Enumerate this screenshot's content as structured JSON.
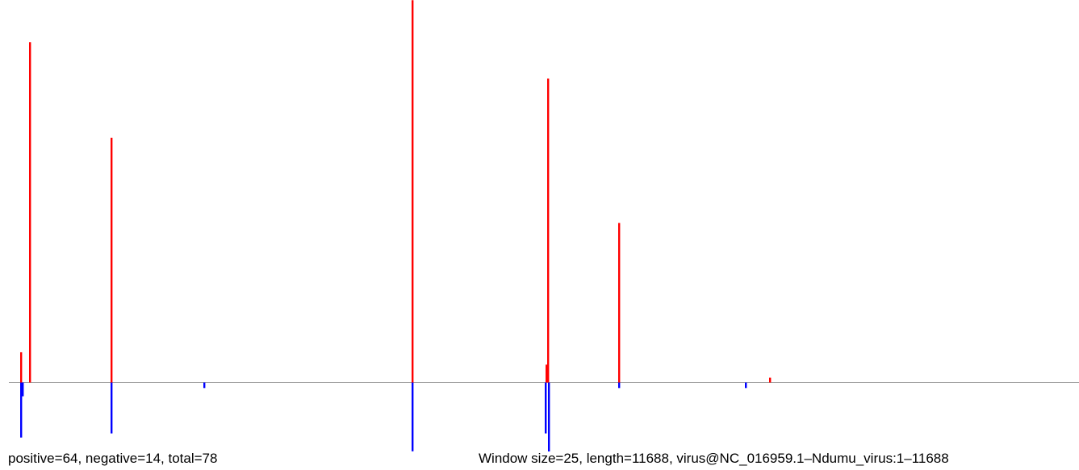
{
  "footer": {
    "counts": "positive=64, negative=14, total=78",
    "info": "Window size=25, length=11688, virus@NC_016959.1–Ndumu_virus:1–11688"
  },
  "colors": {
    "positive": "#ff0000",
    "negative": "#0000ff",
    "baseline": "#a0a0a0"
  },
  "chart_data": {
    "type": "bar",
    "title": "",
    "xlabel": "",
    "ylabel": "",
    "xlim": [
      1,
      11688
    ],
    "ylim": [
      -10,
      56
    ],
    "grid": false,
    "legend": "none",
    "series": [
      {
        "sign": "positive",
        "x": [
          130,
          230,
          1120,
          4410,
          5870,
          5890,
          6660,
          8310
        ],
        "values": [
          4.4,
          49.5,
          35.6,
          55.6,
          2.6,
          44.2,
          23.2,
          0.7
        ]
      },
      {
        "sign": "negative",
        "x": [
          130,
          150,
          1120,
          2130,
          4410,
          5860,
          5900,
          6660,
          8050
        ],
        "values": [
          -8.0,
          -2.0,
          -7.4,
          -0.8,
          -10.0,
          -7.4,
          -11.3,
          -0.8,
          -0.8
        ]
      }
    ]
  }
}
